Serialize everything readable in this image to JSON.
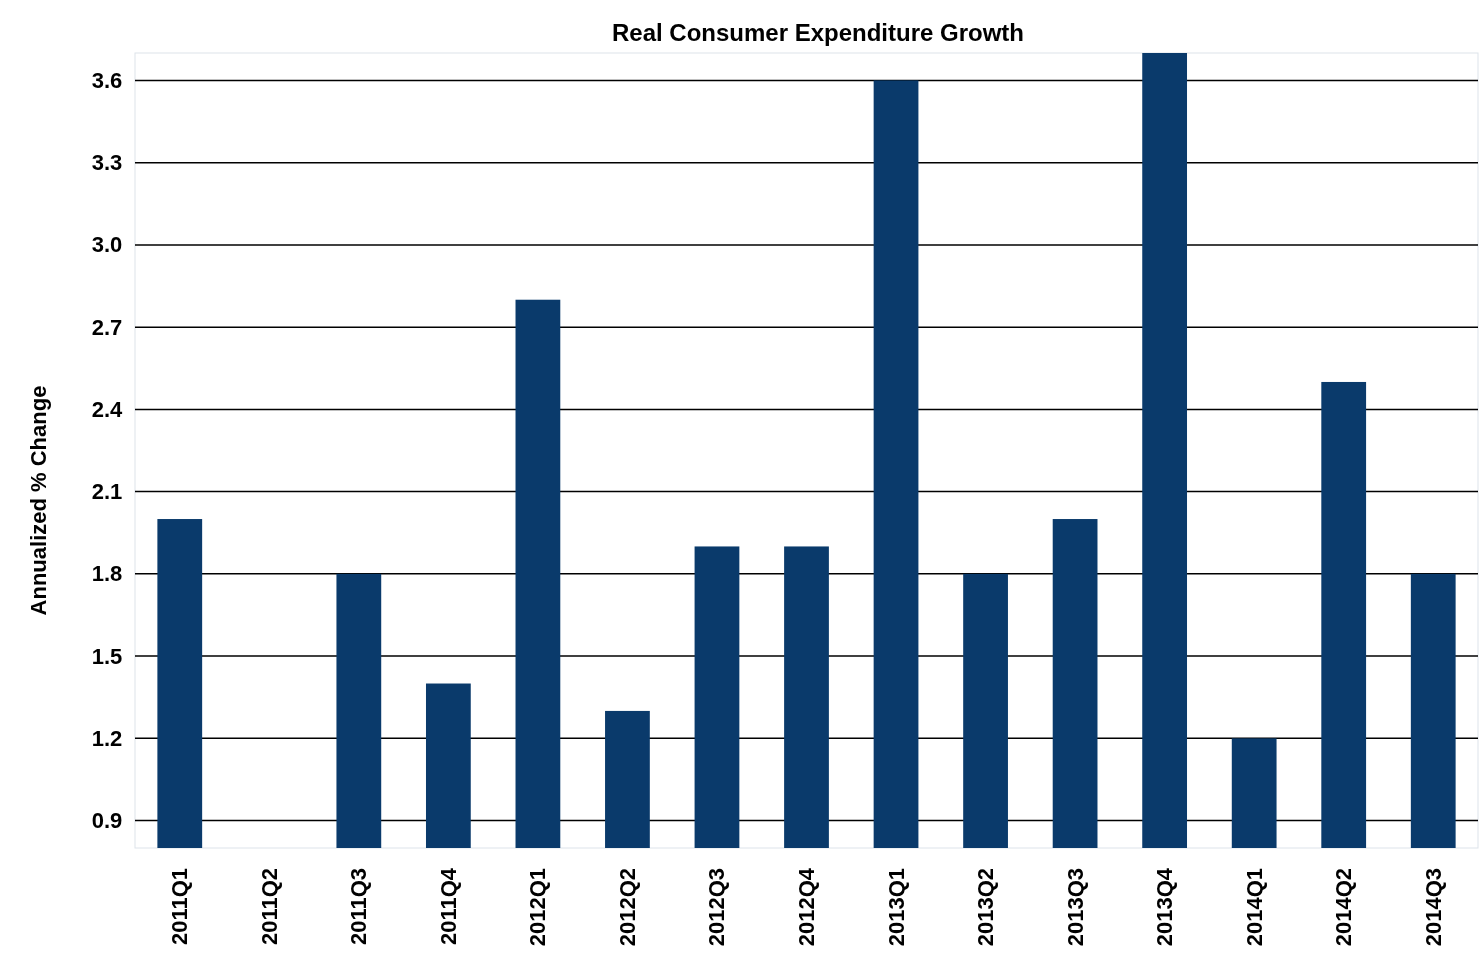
{
  "chart_data": {
    "type": "bar",
    "title": "Real Consumer Expenditure Growth",
    "ylabel": "Annualized % Change",
    "categories": [
      "2011Q1",
      "2011Q2",
      "2011Q3",
      "2011Q4",
      "2012Q1",
      "2012Q2",
      "2012Q3",
      "2012Q4",
      "2013Q1",
      "2013Q2",
      "2013Q3",
      "2013Q4",
      "2014Q1",
      "2014Q2",
      "2014Q3"
    ],
    "values": [
      2.0,
      0.8,
      1.8,
      1.4,
      2.8,
      1.3,
      1.9,
      1.9,
      3.6,
      1.8,
      2.0,
      3.7,
      1.2,
      2.5,
      1.8
    ],
    "color": "#0a3a6b",
    "ylim": [
      0.8,
      3.7
    ],
    "yticks": [
      0.9,
      1.2,
      1.5,
      1.8,
      2.1,
      2.4,
      2.7,
      {
        "value": 3,
        "label": "3.0"
      },
      3.3,
      3.6
    ],
    "grid": "y"
  }
}
